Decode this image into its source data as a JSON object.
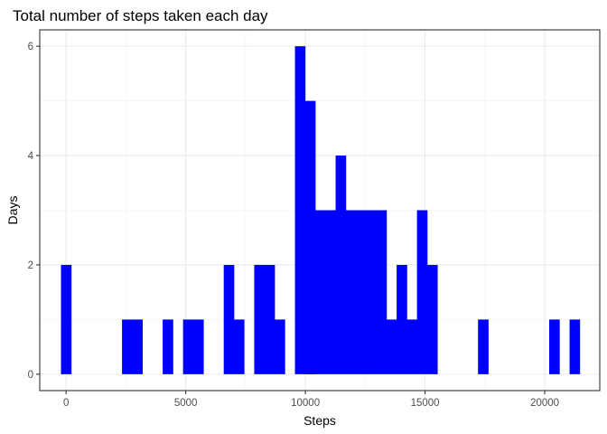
{
  "chart_data": {
    "type": "bar",
    "subtype": "histogram",
    "title": "Total number of steps taken each day",
    "xlabel": "Steps",
    "ylabel": "Days",
    "xlim": [
      -1100,
      22300
    ],
    "ylim": [
      -0.3,
      6.3
    ],
    "xticks": [
      0,
      5000,
      10000,
      15000,
      20000
    ],
    "xtick_labels": [
      "0",
      "5000",
      "10000",
      "15000",
      "20000"
    ],
    "yticks": [
      0,
      2,
      4,
      6
    ],
    "ytick_labels": [
      "0",
      "2",
      "4",
      "6"
    ],
    "bin_width": 425,
    "bar_color": "#0000FF",
    "grid": true,
    "bins": [
      {
        "x": 0,
        "count": 2
      },
      {
        "x": 2550,
        "count": 1
      },
      {
        "x": 2975,
        "count": 1
      },
      {
        "x": 4250,
        "count": 1
      },
      {
        "x": 5100,
        "count": 1
      },
      {
        "x": 5525,
        "count": 1
      },
      {
        "x": 6800,
        "count": 2
      },
      {
        "x": 7225,
        "count": 1
      },
      {
        "x": 8075,
        "count": 2
      },
      {
        "x": 8500,
        "count": 2
      },
      {
        "x": 8925,
        "count": 1
      },
      {
        "x": 10200,
        "count": 2
      },
      {
        "x": 9775,
        "count": 6
      },
      {
        "x": 10200,
        "count": 5
      },
      {
        "x": 10625,
        "count": 3
      },
      {
        "x": 11050,
        "count": 3
      },
      {
        "x": 11475,
        "count": 4
      },
      {
        "x": 11900,
        "count": 3
      },
      {
        "x": 12325,
        "count": 3
      },
      {
        "x": 12750,
        "count": 3
      },
      {
        "x": 13175,
        "count": 3
      },
      {
        "x": 13600,
        "count": 1
      },
      {
        "x": 14025,
        "count": 2
      },
      {
        "x": 14450,
        "count": 1
      },
      {
        "x": 14875,
        "count": 3
      },
      {
        "x": 15300,
        "count": 2
      },
      {
        "x": 17425,
        "count": 1
      },
      {
        "x": 20400,
        "count": 1
      },
      {
        "x": 21250,
        "count": 1
      }
    ]
  }
}
